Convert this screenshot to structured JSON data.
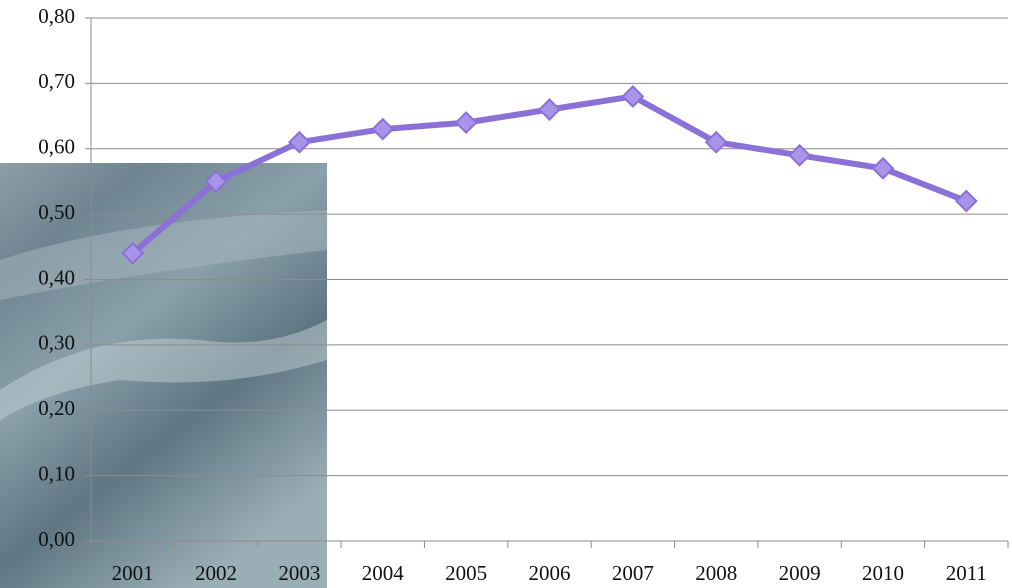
{
  "chart_data": {
    "type": "line",
    "categories": [
      "2001",
      "2002",
      "2003",
      "2004",
      "2005",
      "2006",
      "2007",
      "2008",
      "2009",
      "2010",
      "2011"
    ],
    "values": [
      0.44,
      0.55,
      0.61,
      0.63,
      0.64,
      0.66,
      0.68,
      0.61,
      0.59,
      0.57,
      0.52
    ],
    "color": "#8b70d8",
    "ylim": [
      0,
      0.8
    ],
    "yticks": [
      {
        "value": 0,
        "label": "0,00"
      },
      {
        "value": 0.1,
        "label": "0,10"
      },
      {
        "value": 0.2,
        "label": "0,20"
      },
      {
        "value": 0.3,
        "label": "0,30"
      },
      {
        "value": 0.4,
        "label": "0,40"
      },
      {
        "value": 0.5,
        "label": "0,50"
      },
      {
        "value": 0.6,
        "label": "0,60"
      },
      {
        "value": 0.7,
        "label": "0,70"
      },
      {
        "value": 0.8,
        "label": "0,80"
      }
    ],
    "grid": true
  }
}
